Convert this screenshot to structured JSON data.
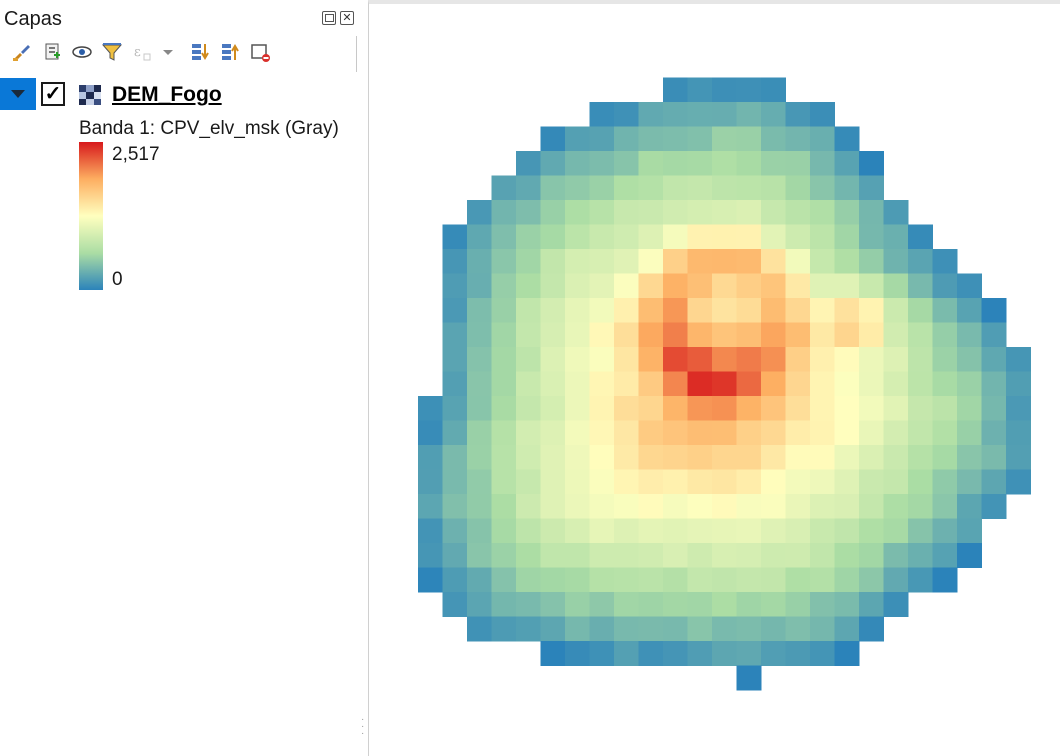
{
  "panel": {
    "title": "Capas",
    "header_buttons": [
      "float-icon",
      "close-icon"
    ],
    "toolbar_icons": [
      "style-manager-icon",
      "add-group-icon",
      "map-themes-eye-icon",
      "filter-legend-icon",
      "expression-filter-icon",
      "dropdown-arrow-icon",
      "expand-all-icon",
      "collapse-all-icon",
      "remove-layer-icon"
    ]
  },
  "layer": {
    "name": "DEM_Fogo",
    "visible": true,
    "expanded": true,
    "band_label": "Banda 1: CPV_elv_msk (Gray)",
    "ramp_max": "2,517",
    "ramp_min": "0",
    "ramp_colors": [
      "#d7191c",
      "#fdae61",
      "#ffffbf",
      "#abdda4",
      "#2b83ba"
    ]
  },
  "colors": {
    "selection": "#0a78d7",
    "canvas_bg": "#ffffff"
  }
}
